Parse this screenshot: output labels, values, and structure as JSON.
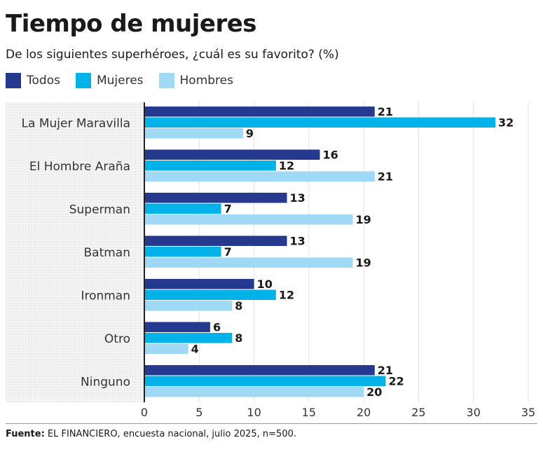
{
  "title": "Tiempo de mujeres",
  "subtitle": "De los siguientes superhéroes, ¿cuál es su favorito? (%)",
  "footer": {
    "source_label": "Fuente:",
    "source_text": " EL FINANCIERO, encuesta nacional, julio 2025, n=500."
  },
  "colors": {
    "todos": "#253a8e",
    "mujeres": "#00b2e8",
    "hombres": "#9fd9f6",
    "panel": "#ececec",
    "axis": "#222222"
  },
  "chart_data": {
    "type": "bar",
    "orientation": "horizontal",
    "title": "Tiempo de mujeres",
    "subtitle": "De los siguientes superhéroes, ¿cuál es su favorito? (%)",
    "categories": [
      "La Mujer Maravilla",
      "El Hombre Araña",
      "Superman",
      "Batman",
      "Ironman",
      "Otro",
      "Ninguno"
    ],
    "series": [
      {
        "name": "Todos",
        "color": "#253a8e",
        "values": [
          21,
          16,
          13,
          13,
          10,
          6,
          21
        ]
      },
      {
        "name": "Mujeres",
        "color": "#00b2e8",
        "values": [
          32,
          12,
          7,
          7,
          12,
          8,
          22
        ]
      },
      {
        "name": "Hombres",
        "color": "#9fd9f6",
        "values": [
          9,
          21,
          19,
          19,
          8,
          4,
          20
        ]
      }
    ],
    "xlim": [
      0,
      35
    ],
    "xticks": [
      0,
      5,
      10,
      15,
      20,
      25,
      30,
      35
    ],
    "legend_position": "top-left",
    "grid": true
  }
}
